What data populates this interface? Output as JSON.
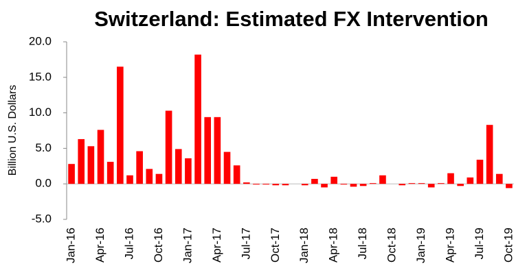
{
  "chart_data": {
    "type": "bar",
    "title": "Switzerland: Estimated FX Intervention",
    "y_label": "Billion U.S. Dollars",
    "categories": [
      "Jan-16",
      null,
      null,
      "Apr-16",
      null,
      null,
      "Jul-16",
      null,
      null,
      "Oct-16",
      null,
      null,
      "Jan-17",
      null,
      null,
      "Apr-17",
      null,
      null,
      "Jul-17",
      null,
      null,
      "Oct-17",
      null,
      null,
      "Jan-18",
      null,
      null,
      "Apr-18",
      null,
      null,
      "Jul-18",
      null,
      null,
      "Oct-18",
      null,
      null,
      "Jan-19",
      null,
      null,
      "Apr-19",
      null,
      null,
      "Jul-19",
      null,
      null,
      "Oct-19"
    ],
    "values": [
      2.8,
      6.3,
      5.3,
      7.6,
      3.1,
      16.5,
      1.2,
      4.6,
      2.1,
      1.4,
      10.3,
      4.9,
      3.6,
      18.2,
      9.4,
      9.4,
      4.5,
      2.6,
      0.2,
      -0.1,
      -0.1,
      -0.2,
      -0.2,
      0.0,
      -0.2,
      0.7,
      -0.5,
      1.0,
      -0.1,
      -0.4,
      -0.3,
      0.1,
      1.2,
      0.0,
      -0.2,
      0.1,
      0.1,
      -0.5,
      0.1,
      1.5,
      -0.3,
      0.9,
      3.4,
      8.3,
      1.4,
      -0.6
    ],
    "color": "#ff0000",
    "ylim": [
      -5,
      20
    ],
    "yticks": [
      {
        "value": -5,
        "label": "-5.0"
      },
      {
        "value": 0,
        "label": "0.0"
      },
      {
        "value": 5,
        "label": "5.0"
      },
      {
        "value": 10,
        "label": "10.0"
      },
      {
        "value": 15,
        "label": "15.0"
      },
      {
        "value": 20,
        "label": "20.0"
      }
    ],
    "grid": false
  }
}
